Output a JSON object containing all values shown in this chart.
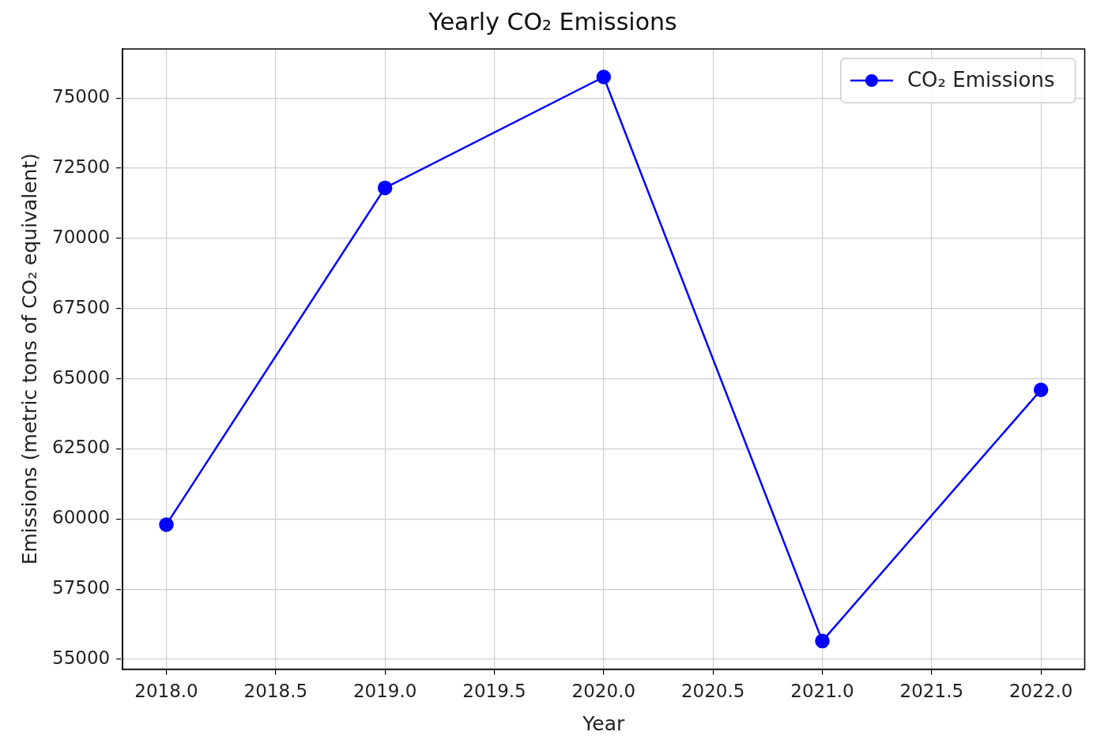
{
  "chart_data": {
    "type": "line",
    "title": "Yearly CO₂ Emissions",
    "xlabel": "Year",
    "ylabel": "Emissions (metric tons of CO₂ equivalent)",
    "x": [
      2018,
      2019,
      2020,
      2021,
      2022
    ],
    "series": [
      {
        "name": "CO₂ Emissions",
        "color": "#0000ff",
        "values": [
          59800,
          71800,
          75750,
          55650,
          64600
        ]
      }
    ],
    "xlim": [
      2017.8,
      2022.2
    ],
    "xticks": [
      {
        "value": 2018,
        "label": "2018.0"
      },
      {
        "value": 2018.5,
        "label": "2018.5"
      },
      {
        "value": 2019,
        "label": "2019.0"
      },
      {
        "value": 2019.5,
        "label": "2019.5"
      },
      {
        "value": 2020,
        "label": "2020.0"
      },
      {
        "value": 2020.5,
        "label": "2020.5"
      },
      {
        "value": 2021,
        "label": "2021.0"
      },
      {
        "value": 2021.5,
        "label": "2021.5"
      },
      {
        "value": 2022,
        "label": "2022.0"
      }
    ],
    "ylim": [
      54650,
      76750
    ],
    "yticks": [
      55000,
      57500,
      60000,
      62500,
      65000,
      67500,
      70000,
      72500,
      75000
    ],
    "grid": true,
    "legend": "top right",
    "marker": "circle",
    "line_style": "solid"
  }
}
